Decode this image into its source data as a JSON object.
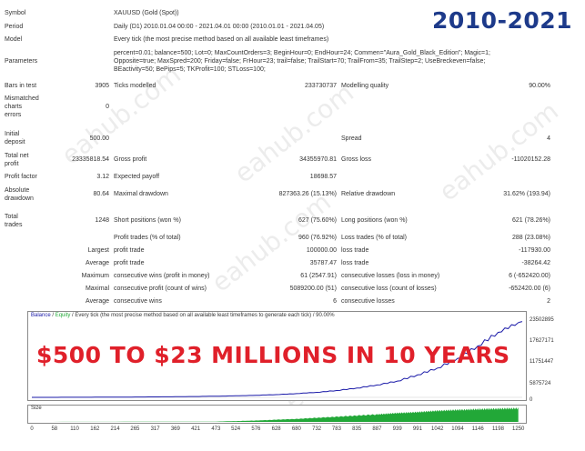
{
  "overlay": {
    "year_range": "2010-2021",
    "claim": "$500 TO $23 MILLIONS IN 10 YEARS",
    "watermark": "eahub.com"
  },
  "report": {
    "symbol": {
      "label": "Symbol",
      "value": "XAUUSD (Gold (Spot))"
    },
    "period": {
      "label": "Period",
      "value": "Daily (D1) 2010.01.04 00:00 - 2021.04.01 00:00 (2010.01.01 - 2021.04.05)"
    },
    "model": {
      "label": "Model",
      "value": "Every tick (the most precise method based on all available least timeframes)"
    },
    "parameters": {
      "label": "Parameters",
      "line1": "percent=0.01; balance=500; Lot=0; MaxCountOrders=3; BeginHour=0; EndHour=24; Commen=\"Aura_Gold_Black_Edition\"; Magic=1;",
      "line2": "Opposite=true; MaxSpred=200; Friday=false; FrHour=23; trail=false; TrailStart=70; TrailFrom=35; TrailStep=2; UseBreckeven=false;",
      "line3": "BEactivity=50; BePips=5; TKProfit=100; STLoss=100;"
    },
    "bars_in_test": {
      "label": "Bars in test",
      "value": "3905"
    },
    "ticks_modelled": {
      "label": "Ticks modelled",
      "value": "233730737"
    },
    "modelling_quality": {
      "label": "Modelling quality",
      "value": "90.00%"
    },
    "mismatched": {
      "label1": "Mismatched",
      "label2": "charts",
      "label3": "errors",
      "value": "0"
    },
    "initial_deposit": {
      "label1": "Initial",
      "label2": "deposit",
      "value": "500.00"
    },
    "spread": {
      "label": "Spread",
      "value": "4"
    },
    "total_net_profit": {
      "label1": "Total net",
      "label2": "profit",
      "value": "23335818.54"
    },
    "gross_profit": {
      "label": "Gross profit",
      "value": "34355970.81"
    },
    "gross_loss": {
      "label": "Gross loss",
      "value": "-11020152.28"
    },
    "profit_factor": {
      "label": "Profit factor",
      "value": "3.12"
    },
    "expected_payoff": {
      "label": "Expected payoff",
      "value": "18698.57"
    },
    "absolute_drawdown": {
      "label1": "Absolute",
      "label2": "drawdown",
      "value": "80.64"
    },
    "maximal_drawdown": {
      "label": "Maximal drawdown",
      "value": "827363.26 (15.13%)"
    },
    "relative_drawdown": {
      "label": "Relative drawdown",
      "value": "31.62% (193.94)"
    },
    "total_trades": {
      "label1": "Total",
      "label2": "trades",
      "value": "1248"
    },
    "short_positions": {
      "label": "Short positions (won %)",
      "value": "627 (75.60%)"
    },
    "long_positions": {
      "label": "Long positions (won %)",
      "value": "621 (78.26%)"
    },
    "profit_trades": {
      "label": "Profit trades (% of total)",
      "value": "960 (76.92%)"
    },
    "loss_trades": {
      "label": "Loss trades (% of total)",
      "value": "288 (23.08%)"
    },
    "largest": {
      "label": "Largest",
      "profit_label": "profit trade",
      "profit_value": "100000.00",
      "loss_label": "loss trade",
      "loss_value": "-117930.00"
    },
    "average": {
      "label": "Average",
      "profit_label": "profit trade",
      "profit_value": "35787.47",
      "loss_label": "loss trade",
      "loss_value": "-38264.42"
    },
    "maximum": {
      "label": "Maximum",
      "wins_label": "consecutive wins (profit in money)",
      "wins_value": "61 (2547.91)",
      "losses_label": "consecutive losses (loss in money)",
      "losses_value": "6 (-652420.00)"
    },
    "maximal": {
      "label": "Maximal",
      "profit_label": "consecutive profit (count of wins)",
      "profit_value": "5089200.00 (51)",
      "loss_label": "consecutive loss (count of losses)",
      "loss_value": "-652420.00 (6)"
    },
    "average_consec": {
      "label": "Average",
      "wins_label": "consecutive wins",
      "wins_value": "6",
      "losses_label": "consecutive losses",
      "losses_value": "2"
    }
  },
  "chart": {
    "legend_balance": "Balance",
    "legend_sep": " / ",
    "legend_equity": "Equity",
    "legend_rest": " / Every tick (the most precise method based on all available least timeframes to generate each tick) / 90.00%",
    "size_label": "Size",
    "colors": {
      "balance": "#1a1aa8",
      "size": "#22a838",
      "legend_balance": "#1a1aa8",
      "legend_equity": "#22a838"
    }
  },
  "chart_data": {
    "type": "line",
    "title": "Balance / Equity",
    "y_ticks": [
      "23502895",
      "17627171",
      "11751447",
      "5875724",
      "0"
    ],
    "ylim": [
      0,
      23502895
    ],
    "x_ticks": [
      "0",
      "58",
      "110",
      "162",
      "214",
      "265",
      "317",
      "369",
      "421",
      "473",
      "524",
      "576",
      "628",
      "680",
      "732",
      "783",
      "835",
      "887",
      "939",
      "991",
      "1042",
      "1094",
      "1146",
      "1198",
      "1250"
    ],
    "xlim": [
      0,
      1260
    ],
    "series": [
      {
        "name": "Balance",
        "x": [
          0,
          58,
          110,
          162,
          214,
          265,
          317,
          369,
          421,
          473,
          524,
          576,
          628,
          680,
          732,
          783,
          835,
          887,
          939,
          991,
          1042,
          1094,
          1146,
          1198,
          1250,
          1260
        ],
        "values": [
          500,
          9000,
          25000,
          45000,
          70000,
          100000,
          140000,
          190000,
          260000,
          350000,
          470000,
          630000,
          850000,
          1150000,
          1550000,
          2100000,
          2850000,
          3800000,
          5000000,
          6900000,
          9000000,
          12000000,
          15800000,
          20000000,
          23000000,
          23335818
        ]
      }
    ],
    "size_series": {
      "name": "Size",
      "x": [
        0,
        473,
        576,
        680,
        783,
        887,
        939,
        991,
        1042,
        1094,
        1146,
        1198,
        1250
      ],
      "values": [
        0,
        0.02,
        0.1,
        0.22,
        0.38,
        0.55,
        0.65,
        0.72,
        0.82,
        0.88,
        0.93,
        0.97,
        1.0
      ]
    }
  }
}
